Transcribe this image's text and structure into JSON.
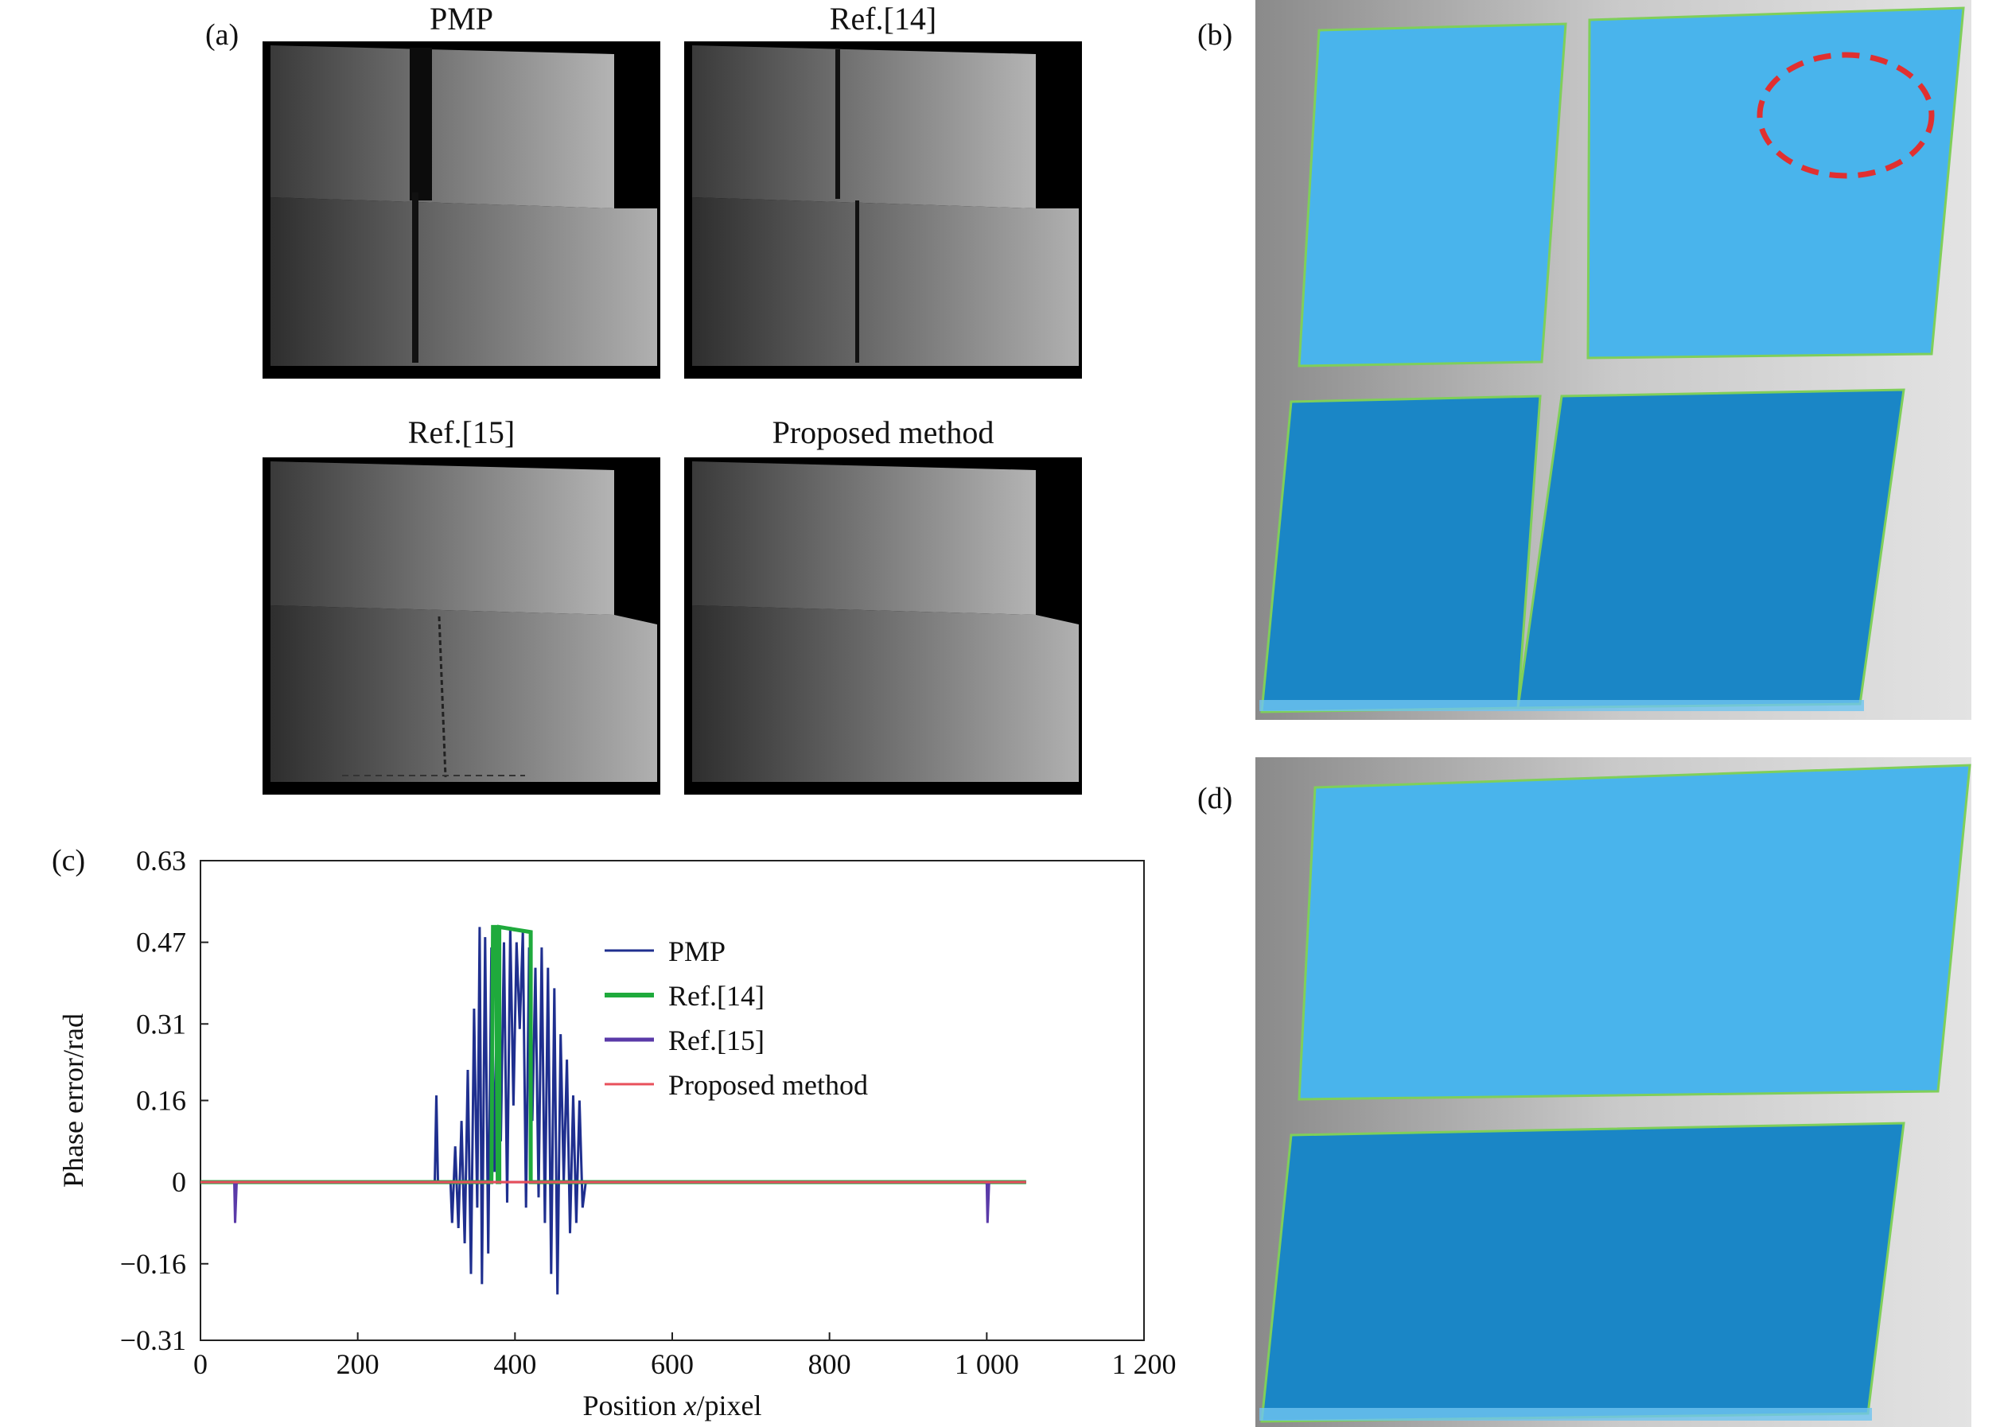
{
  "panels": {
    "a": {
      "label": "(a)",
      "subplots": [
        {
          "title": "PMP",
          "artifact": "heavy"
        },
        {
          "title": "Ref.[14]",
          "artifact": "thin"
        },
        {
          "title": "Ref.[15]",
          "artifact": "dotted"
        },
        {
          "title": "Proposed method",
          "artifact": "none"
        }
      ]
    },
    "b": {
      "label": "(b)"
    },
    "c": {
      "label": "(c)"
    },
    "d": {
      "label": "(d)"
    }
  },
  "colors": {
    "light_blue": "#49b4ec",
    "dark_blue": "#1a86c6",
    "gray_bg": "#c9c9c9",
    "edge_green": "#7fcf5a",
    "ellipse_red": "#e03030"
  },
  "chart_data": {
    "type": "line",
    "xlabel_prefix": "Position ",
    "xlabel_var": "x",
    "xlabel_suffix": "/pixel",
    "ylabel": "Phase error/rad",
    "xlim": [
      0,
      1200
    ],
    "ylim": [
      -0.31,
      0.63
    ],
    "xticks": [
      0,
      200,
      400,
      600,
      800,
      1000,
      1200
    ],
    "xtick_labels": [
      "0",
      "200",
      "400",
      "600",
      "800",
      "1 000",
      "1 200"
    ],
    "yticks": [
      0.63,
      0.47,
      0.31,
      0.16,
      0,
      -0.16,
      -0.31
    ],
    "ytick_labels": [
      "0.63",
      "0.47",
      "0.31",
      "0.16",
      "0",
      "−0.16",
      "−0.31"
    ],
    "legend_position": "top-right",
    "series": [
      {
        "name": "PMP",
        "color": "#1f2f8f",
        "points": [
          [
            0,
            0
          ],
          [
            298,
            0
          ],
          [
            300,
            0.17
          ],
          [
            302,
            0
          ],
          [
            318,
            0
          ],
          [
            320,
            -0.08
          ],
          [
            324,
            0.07
          ],
          [
            328,
            -0.09
          ],
          [
            332,
            0.12
          ],
          [
            336,
            -0.12
          ],
          [
            340,
            0.22
          ],
          [
            344,
            -0.18
          ],
          [
            348,
            0.34
          ],
          [
            352,
            -0.05
          ],
          [
            355,
            0.5
          ],
          [
            358,
            -0.2
          ],
          [
            362,
            0.48
          ],
          [
            366,
            -0.14
          ],
          [
            370,
            0.46
          ],
          [
            374,
            0.02
          ],
          [
            378,
            0.5
          ],
          [
            382,
            0.08
          ],
          [
            386,
            0.47
          ],
          [
            390,
            -0.04
          ],
          [
            394,
            0.5
          ],
          [
            398,
            0.15
          ],
          [
            402,
            0.47
          ],
          [
            406,
            0.3
          ],
          [
            410,
            0.49
          ],
          [
            414,
            -0.05
          ],
          [
            418,
            0.46
          ],
          [
            422,
            0.12
          ],
          [
            426,
            0.42
          ],
          [
            430,
            -0.03
          ],
          [
            434,
            0.46
          ],
          [
            438,
            -0.08
          ],
          [
            442,
            0.42
          ],
          [
            446,
            -0.18
          ],
          [
            450,
            0.38
          ],
          [
            454,
            -0.22
          ],
          [
            458,
            0.29
          ],
          [
            462,
            0.0
          ],
          [
            466,
            0.24
          ],
          [
            470,
            -0.1
          ],
          [
            474,
            0.17
          ],
          [
            478,
            -0.08
          ],
          [
            482,
            0.16
          ],
          [
            486,
            -0.05
          ],
          [
            490,
            0
          ],
          [
            1050,
            0
          ]
        ]
      },
      {
        "name": "Ref.[14]",
        "color": "#1faa3c",
        "points": [
          [
            0,
            0
          ],
          [
            370,
            0
          ],
          [
            372,
            0.5
          ],
          [
            376,
            0.5
          ],
          [
            378,
            0
          ],
          [
            380,
            0
          ],
          [
            380,
            0.5
          ],
          [
            420,
            0.49
          ],
          [
            420,
            0
          ],
          [
            1050,
            0
          ]
        ]
      },
      {
        "name": "Ref.[15]",
        "color": "#5a3aa8",
        "points": [
          [
            0,
            0
          ],
          [
            43,
            0
          ],
          [
            44,
            -0.08
          ],
          [
            46,
            0
          ],
          [
            1000,
            0
          ],
          [
            1001,
            -0.08
          ],
          [
            1003,
            0
          ],
          [
            1050,
            0
          ]
        ]
      },
      {
        "name": "Proposed method",
        "color": "#e8505b",
        "points": [
          [
            0,
            0
          ],
          [
            1050,
            0
          ]
        ]
      }
    ]
  }
}
